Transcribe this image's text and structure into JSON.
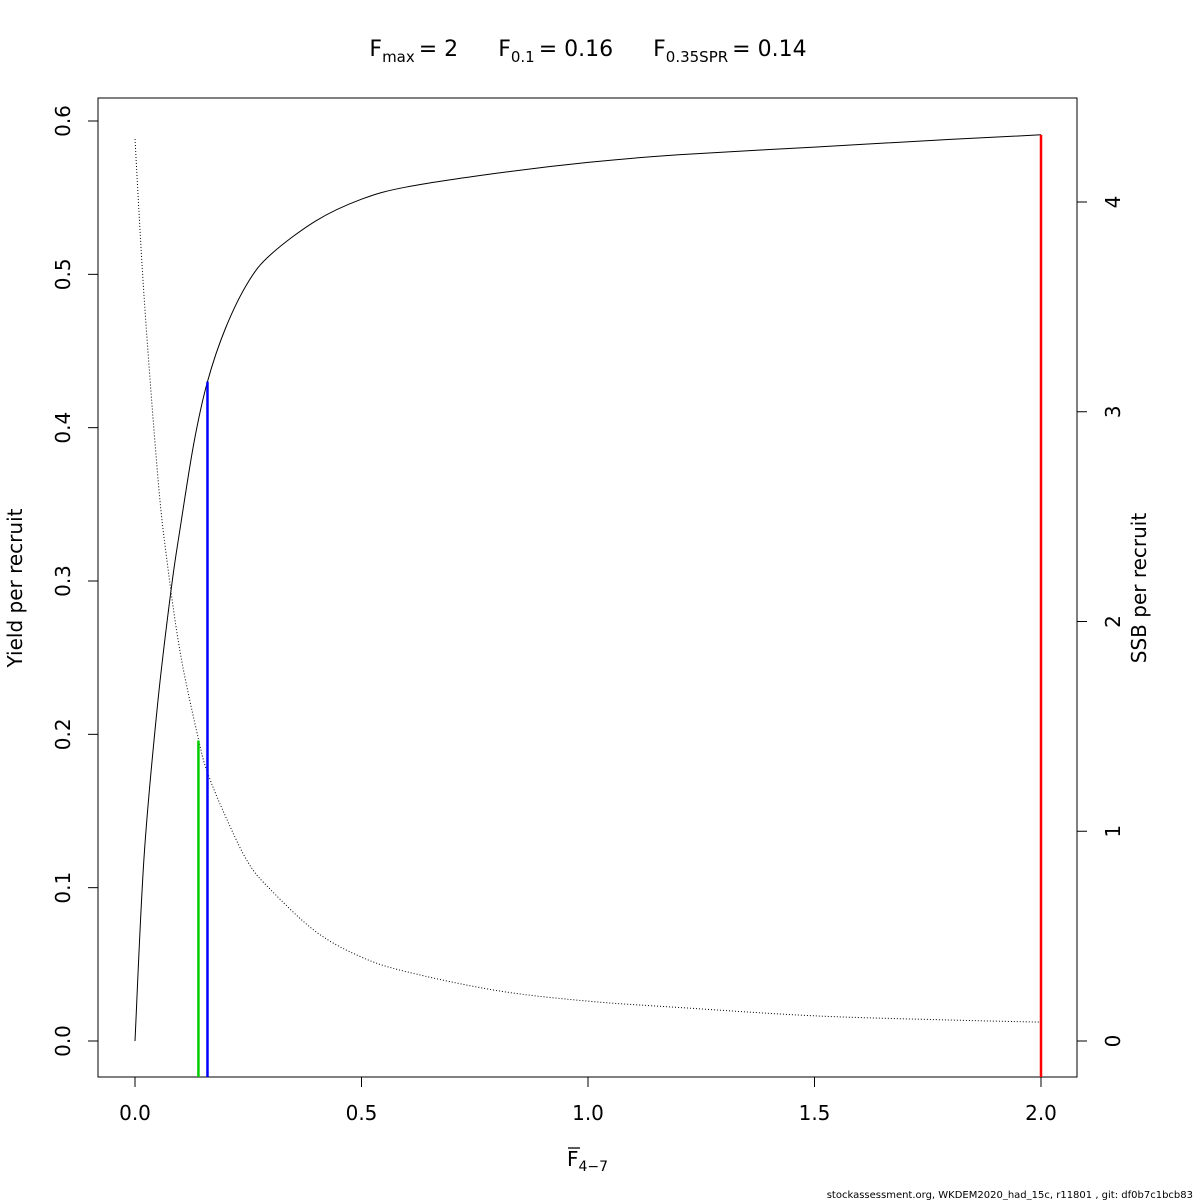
{
  "chart_data": {
    "type": "line",
    "title": {
      "fmax_sym": "F",
      "fmax_sub": "max",
      "fmax_val": "= 2",
      "f01_sym": "F",
      "f01_sub": "0.1",
      "f01_val": "= 0.16",
      "fspr_sym": "F",
      "fspr_sub": "0.35SPR",
      "fspr_val": "= 0.14"
    },
    "xlabel": {
      "sym": "F",
      "sub": "4−7"
    },
    "ylabel_left": "Yield per recruit",
    "ylabel_right": "SSB per recruit",
    "xlim": [
      0,
      2
    ],
    "ylim_left": [
      0,
      0.6
    ],
    "ylim_right": [
      0,
      4
    ],
    "x_ticks": [
      {
        "value": 0,
        "label": "0.0"
      },
      {
        "value": 0.5,
        "label": "0.5"
      },
      {
        "value": 1,
        "label": "1.0"
      },
      {
        "value": 1.5,
        "label": "1.5"
      },
      {
        "value": 2,
        "label": "2.0"
      }
    ],
    "y_left_ticks": [
      {
        "value": 0,
        "label": "0.0"
      },
      {
        "value": 0.1,
        "label": "0.1"
      },
      {
        "value": 0.2,
        "label": "0.2"
      },
      {
        "value": 0.3,
        "label": "0.3"
      },
      {
        "value": 0.4,
        "label": "0.4"
      },
      {
        "value": 0.5,
        "label": "0.5"
      },
      {
        "value": 0.6,
        "label": "0.6"
      }
    ],
    "y_right_ticks": [
      {
        "value": 0,
        "label": "0"
      },
      {
        "value": 1,
        "label": "1"
      },
      {
        "value": 2,
        "label": "2"
      },
      {
        "value": 3,
        "label": "3"
      },
      {
        "value": 4,
        "label": "4"
      }
    ],
    "series": [
      {
        "axis": "left",
        "style": "solid",
        "color": "#000000",
        "x": [
          0,
          0.02,
          0.05,
          0.08,
          0.1,
          0.13,
          0.16,
          0.2,
          0.25,
          0.3,
          0.4,
          0.5,
          0.6,
          0.8,
          1.0,
          1.2,
          1.5,
          1.8,
          2.0
        ],
        "y": [
          0,
          0.12,
          0.22,
          0.295,
          0.335,
          0.39,
          0.43,
          0.465,
          0.495,
          0.513,
          0.535,
          0.549,
          0.557,
          0.566,
          0.573,
          0.578,
          0.583,
          0.588,
          0.591
        ]
      },
      {
        "axis": "right",
        "style": "dotted",
        "color": "#000000",
        "x": [
          0,
          0.02,
          0.05,
          0.07,
          0.1,
          0.14,
          0.16,
          0.2,
          0.25,
          0.3,
          0.4,
          0.5,
          0.6,
          0.8,
          1.0,
          1.2,
          1.5,
          1.8,
          2.0
        ],
        "y": [
          4.3,
          3.55,
          2.7,
          2.3,
          1.85,
          1.44,
          1.28,
          1.07,
          0.85,
          0.72,
          0.52,
          0.4,
          0.33,
          0.24,
          0.19,
          0.16,
          0.12,
          0.1,
          0.09
        ]
      }
    ],
    "reference_lines": [
      {
        "name": "F0.35SPR",
        "x": 0.14,
        "y_left": 0.196,
        "color": "#00cc00"
      },
      {
        "name": "F0.1",
        "x": 0.16,
        "y_left": 0.43,
        "color": "#0000ff"
      },
      {
        "name": "Fmax",
        "x": 2.0,
        "y_left": 0.591,
        "color": "#ff0000"
      }
    ],
    "footnote": "stockassessment.org, WKDEM2020_had_15c, r11801 , git: df0b7c1bcb83"
  }
}
